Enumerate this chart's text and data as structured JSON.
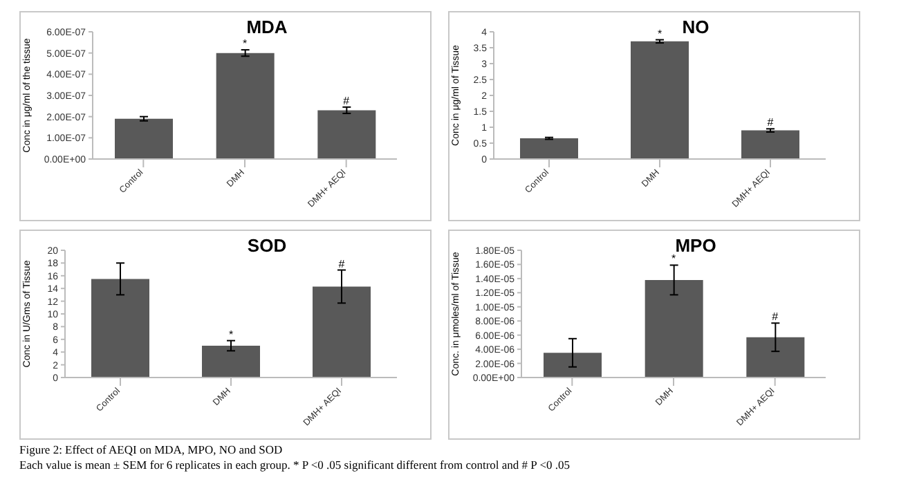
{
  "chart_data": [
    {
      "type": "bar",
      "title": "MDA",
      "ylabel": "Conc in μg/ml of the tissue",
      "categories": [
        "Control",
        "DMH",
        "DMH+ AEQI"
      ],
      "values": [
        1.9e-07,
        5e-07,
        2.3e-07
      ],
      "errors": [
        1e-08,
        1.5e-08,
        1.5e-08
      ],
      "color": "#595959",
      "ylim": [
        0,
        6e-07
      ],
      "yticks": [
        {
          "value": 0,
          "label": "0.00E+00"
        },
        {
          "value": 1e-07,
          "label": "1.00E-07"
        },
        {
          "value": 2e-07,
          "label": "2.00E-07"
        },
        {
          "value": 3e-07,
          "label": "3.00E-07"
        },
        {
          "value": 4e-07,
          "label": "4.00E-07"
        },
        {
          "value": 5e-07,
          "label": "5.00E-07"
        },
        {
          "value": 6e-07,
          "label": "6.00E-07"
        }
      ],
      "annotations": [
        {
          "text": "*",
          "x": "DMH",
          "y": 5.15e-07
        },
        {
          "text": "#",
          "x": "DMH+ AEQI",
          "y": 2.45e-07
        }
      ],
      "grid": false,
      "legend": false
    },
    {
      "type": "bar",
      "title": "NO",
      "ylabel": "Conc in μg/ml of Tissue",
      "categories": [
        "Control",
        "DMH",
        "DMH+ AEQI"
      ],
      "values": [
        0.65,
        3.7,
        0.9
      ],
      "errors": [
        0.03,
        0.05,
        0.05
      ],
      "color": "#595959",
      "ylim": [
        0,
        4
      ],
      "yticks": [
        0,
        0.5,
        1,
        1.5,
        2,
        2.5,
        3,
        3.5,
        4
      ],
      "annotations": [
        {
          "text": "*",
          "x": "DMH",
          "y": 3.75
        },
        {
          "text": "#",
          "x": "DMH+ AEQI",
          "y": 0.95
        }
      ],
      "grid": false,
      "legend": false
    },
    {
      "type": "bar",
      "title": "SOD",
      "ylabel": "Conc in U/Gms of Tissue",
      "categories": [
        "Control",
        "DMH",
        "DMH+ AEQI"
      ],
      "values": [
        15.5,
        5,
        14.3
      ],
      "errors": [
        2.5,
        0.8,
        2.6
      ],
      "color": "#595959",
      "ylim": [
        0,
        20
      ],
      "yticks": [
        0,
        2,
        4,
        6,
        8,
        10,
        12,
        14,
        16,
        18,
        20
      ],
      "annotations": [
        {
          "text": "*",
          "x": "DMH",
          "y": 5.8
        },
        {
          "text": "#",
          "x": "DMH+ AEQI",
          "y": 16.9
        }
      ],
      "grid": false,
      "legend": false
    },
    {
      "type": "bar",
      "title": "MPO",
      "ylabel": "Conc. in μmoles/ml of Tissue",
      "categories": [
        "Control",
        "DMH",
        "DMH+ AEQI"
      ],
      "values": [
        3.5e-06,
        1.38e-05,
        5.7e-06
      ],
      "errors": [
        2e-06,
        2.1e-06,
        2e-06
      ],
      "color": "#595959",
      "ylim": [
        0,
        1.8e-05
      ],
      "yticks": [
        {
          "value": 0,
          "label": "0.00E+00"
        },
        {
          "value": 2e-06,
          "label": "2.00E-06"
        },
        {
          "value": 4e-06,
          "label": "4.00E-06"
        },
        {
          "value": 6e-06,
          "label": "6.00E-06"
        },
        {
          "value": 8e-06,
          "label": "8.00E-06"
        },
        {
          "value": 1e-05,
          "label": "1.00E-05"
        },
        {
          "value": 1.2e-05,
          "label": "1.20E-05"
        },
        {
          "value": 1.4e-05,
          "label": "1.40E-05"
        },
        {
          "value": 1.6e-05,
          "label": "1.60E-05"
        },
        {
          "value": 1.8e-05,
          "label": "1.80E-05"
        }
      ],
      "annotations": [
        {
          "text": "*",
          "x": "DMH",
          "y": 1.59e-05
        },
        {
          "text": "#",
          "x": "DMH+ AEQI",
          "y": 7.7e-06
        },
        "Figure 2: Effect of AEQI on MDA, MPO, NO and SOD",
        "Each value is mean ± SEM for 6 replicates in each group. * P <0 .05 significant different from control and  # P <0 .05"
      ],
      "grid": false,
      "legend": false
    }
  ]
}
